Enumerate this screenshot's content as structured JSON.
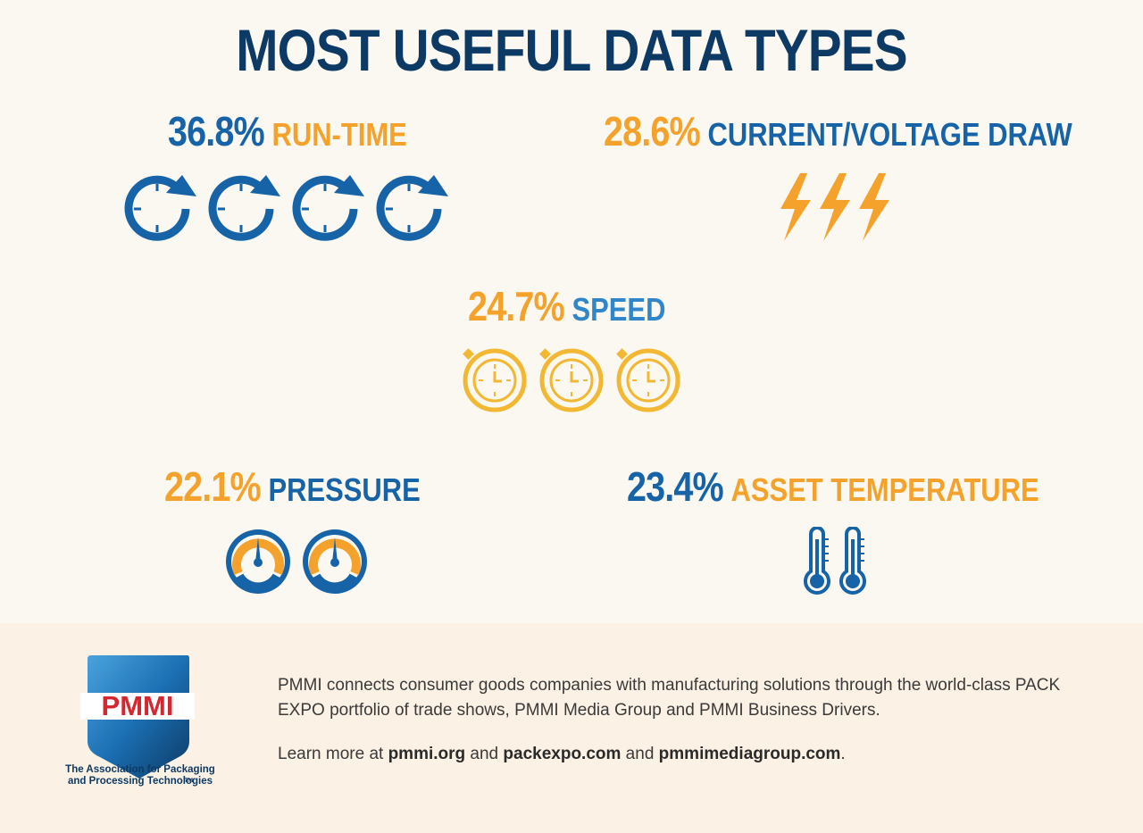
{
  "title": "MOST USEFUL DATA TYPES",
  "chart_data": {
    "type": "pictogram",
    "title": "MOST USEFUL DATA TYPES",
    "unit": "%",
    "items": [
      {
        "label": "RUN-TIME",
        "value": 36.8,
        "value_text": "36.8%",
        "icon": "clock-refresh-icon",
        "icon_count": 4
      },
      {
        "label": "CURRENT/VOLTAGE DRAW",
        "value": 28.6,
        "value_text": "28.6%",
        "icon": "lightning-bolt-icon",
        "icon_count": 3
      },
      {
        "label": "SPEED",
        "value": 24.7,
        "value_text": "24.7%",
        "icon": "stopwatch-icon",
        "icon_count": 3
      },
      {
        "label": "PRESSURE",
        "value": 22.1,
        "value_text": "22.1%",
        "icon": "pressure-gauge-icon",
        "icon_count": 2
      },
      {
        "label": "ASSET TEMPERATURE",
        "value": 23.4,
        "value_text": "23.4%",
        "icon": "thermometer-icon",
        "icon_count": 2
      }
    ]
  },
  "colors": {
    "navy": "#0d3a64",
    "blue": "#1663a8",
    "light_blue": "#2f86c9",
    "orange": "#f4a22b",
    "red": "#d6262f"
  },
  "footer": {
    "logo_text": "PMMI",
    "tm": "TM",
    "tagline_line1": "The Association for Packaging",
    "tagline_line2": "and Processing Technologies",
    "description": "PMMI connects consumer goods companies with manufacturing solutions through the world-class PACK EXPO portfolio of trade shows, PMMI Media Group and PMMI Business Drivers.",
    "learn_prefix": "Learn more at ",
    "link1": "pmmi.org",
    "and1": " and ",
    "link2": "packexpo.com",
    "and2": " and ",
    "link3": "pmmimediagroup.com",
    "period": "."
  }
}
